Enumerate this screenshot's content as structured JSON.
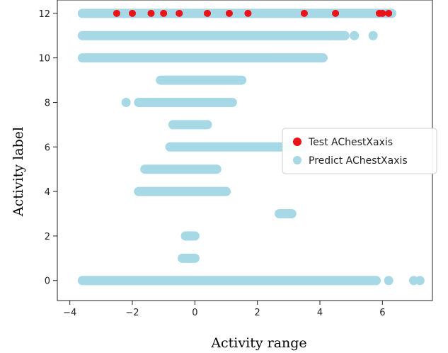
{
  "chart_data": {
    "type": "scatter",
    "title": "",
    "xlabel": "Activity range",
    "ylabel": "Activity label",
    "xlim": [
      -4.4,
      7.6
    ],
    "ylim": [
      -0.9,
      12.6
    ],
    "xticks": [
      -4,
      -2,
      0,
      2,
      4,
      6
    ],
    "yticks": [
      0,
      2,
      4,
      6,
      8,
      10,
      12
    ],
    "grid": false,
    "legend_position": "center-right",
    "series": [
      {
        "name": "Test AChestXaxis",
        "color": "#e8141a",
        "points": [
          {
            "x": -2.5,
            "y": 12
          },
          {
            "x": -2.0,
            "y": 12
          },
          {
            "x": -1.4,
            "y": 12
          },
          {
            "x": -1.0,
            "y": 12
          },
          {
            "x": -0.5,
            "y": 12
          },
          {
            "x": 0.4,
            "y": 12
          },
          {
            "x": 1.1,
            "y": 12
          },
          {
            "x": 1.7,
            "y": 12
          },
          {
            "x": 3.5,
            "y": 12
          },
          {
            "x": 4.5,
            "y": 12
          },
          {
            "x": 5.9,
            "y": 12
          },
          {
            "x": 6.0,
            "y": 12
          },
          {
            "x": 6.2,
            "y": 12
          }
        ]
      },
      {
        "name": "Predict AChestXaxis",
        "color": "#a6d8e6",
        "segments": [
          {
            "y": 12,
            "x_from": -3.6,
            "x_to": 6.3
          },
          {
            "y": 11,
            "x_from": -3.6,
            "x_to": 4.8
          },
          {
            "y": 10,
            "x_from": -3.6,
            "x_to": 4.1
          },
          {
            "y": 9,
            "x_from": -1.1,
            "x_to": 1.5
          },
          {
            "y": 8,
            "x_from": -1.8,
            "x_to": 1.2
          },
          {
            "y": 7,
            "x_from": -0.7,
            "x_to": 0.4
          },
          {
            "y": 6,
            "x_from": -0.8,
            "x_to": 3.5
          },
          {
            "y": 5,
            "x_from": -1.6,
            "x_to": 0.7
          },
          {
            "y": 4,
            "x_from": -1.8,
            "x_to": 1.0
          },
          {
            "y": 3,
            "x_from": 2.7,
            "x_to": 3.1
          },
          {
            "y": 2,
            "x_from": -0.3,
            "x_to": 0.0
          },
          {
            "y": 1,
            "x_from": -0.4,
            "x_to": 0.0
          },
          {
            "y": 0,
            "x_from": -3.6,
            "x_to": 5.8
          }
        ],
        "points": [
          {
            "x": 4.3,
            "y": 11
          },
          {
            "x": 4.5,
            "y": 11
          },
          {
            "x": 4.7,
            "y": 11
          },
          {
            "x": 5.1,
            "y": 11
          },
          {
            "x": 5.7,
            "y": 11
          },
          {
            "x": -2.2,
            "y": 8
          },
          {
            "x": 6.2,
            "y": 0
          },
          {
            "x": 7.0,
            "y": 0
          },
          {
            "x": 7.2,
            "y": 0
          }
        ]
      }
    ]
  },
  "legend": [
    {
      "label": "Test AChestXaxis",
      "color": "#e8141a"
    },
    {
      "label": "Predict AChestXaxis",
      "color": "#a6d8e6"
    }
  ]
}
